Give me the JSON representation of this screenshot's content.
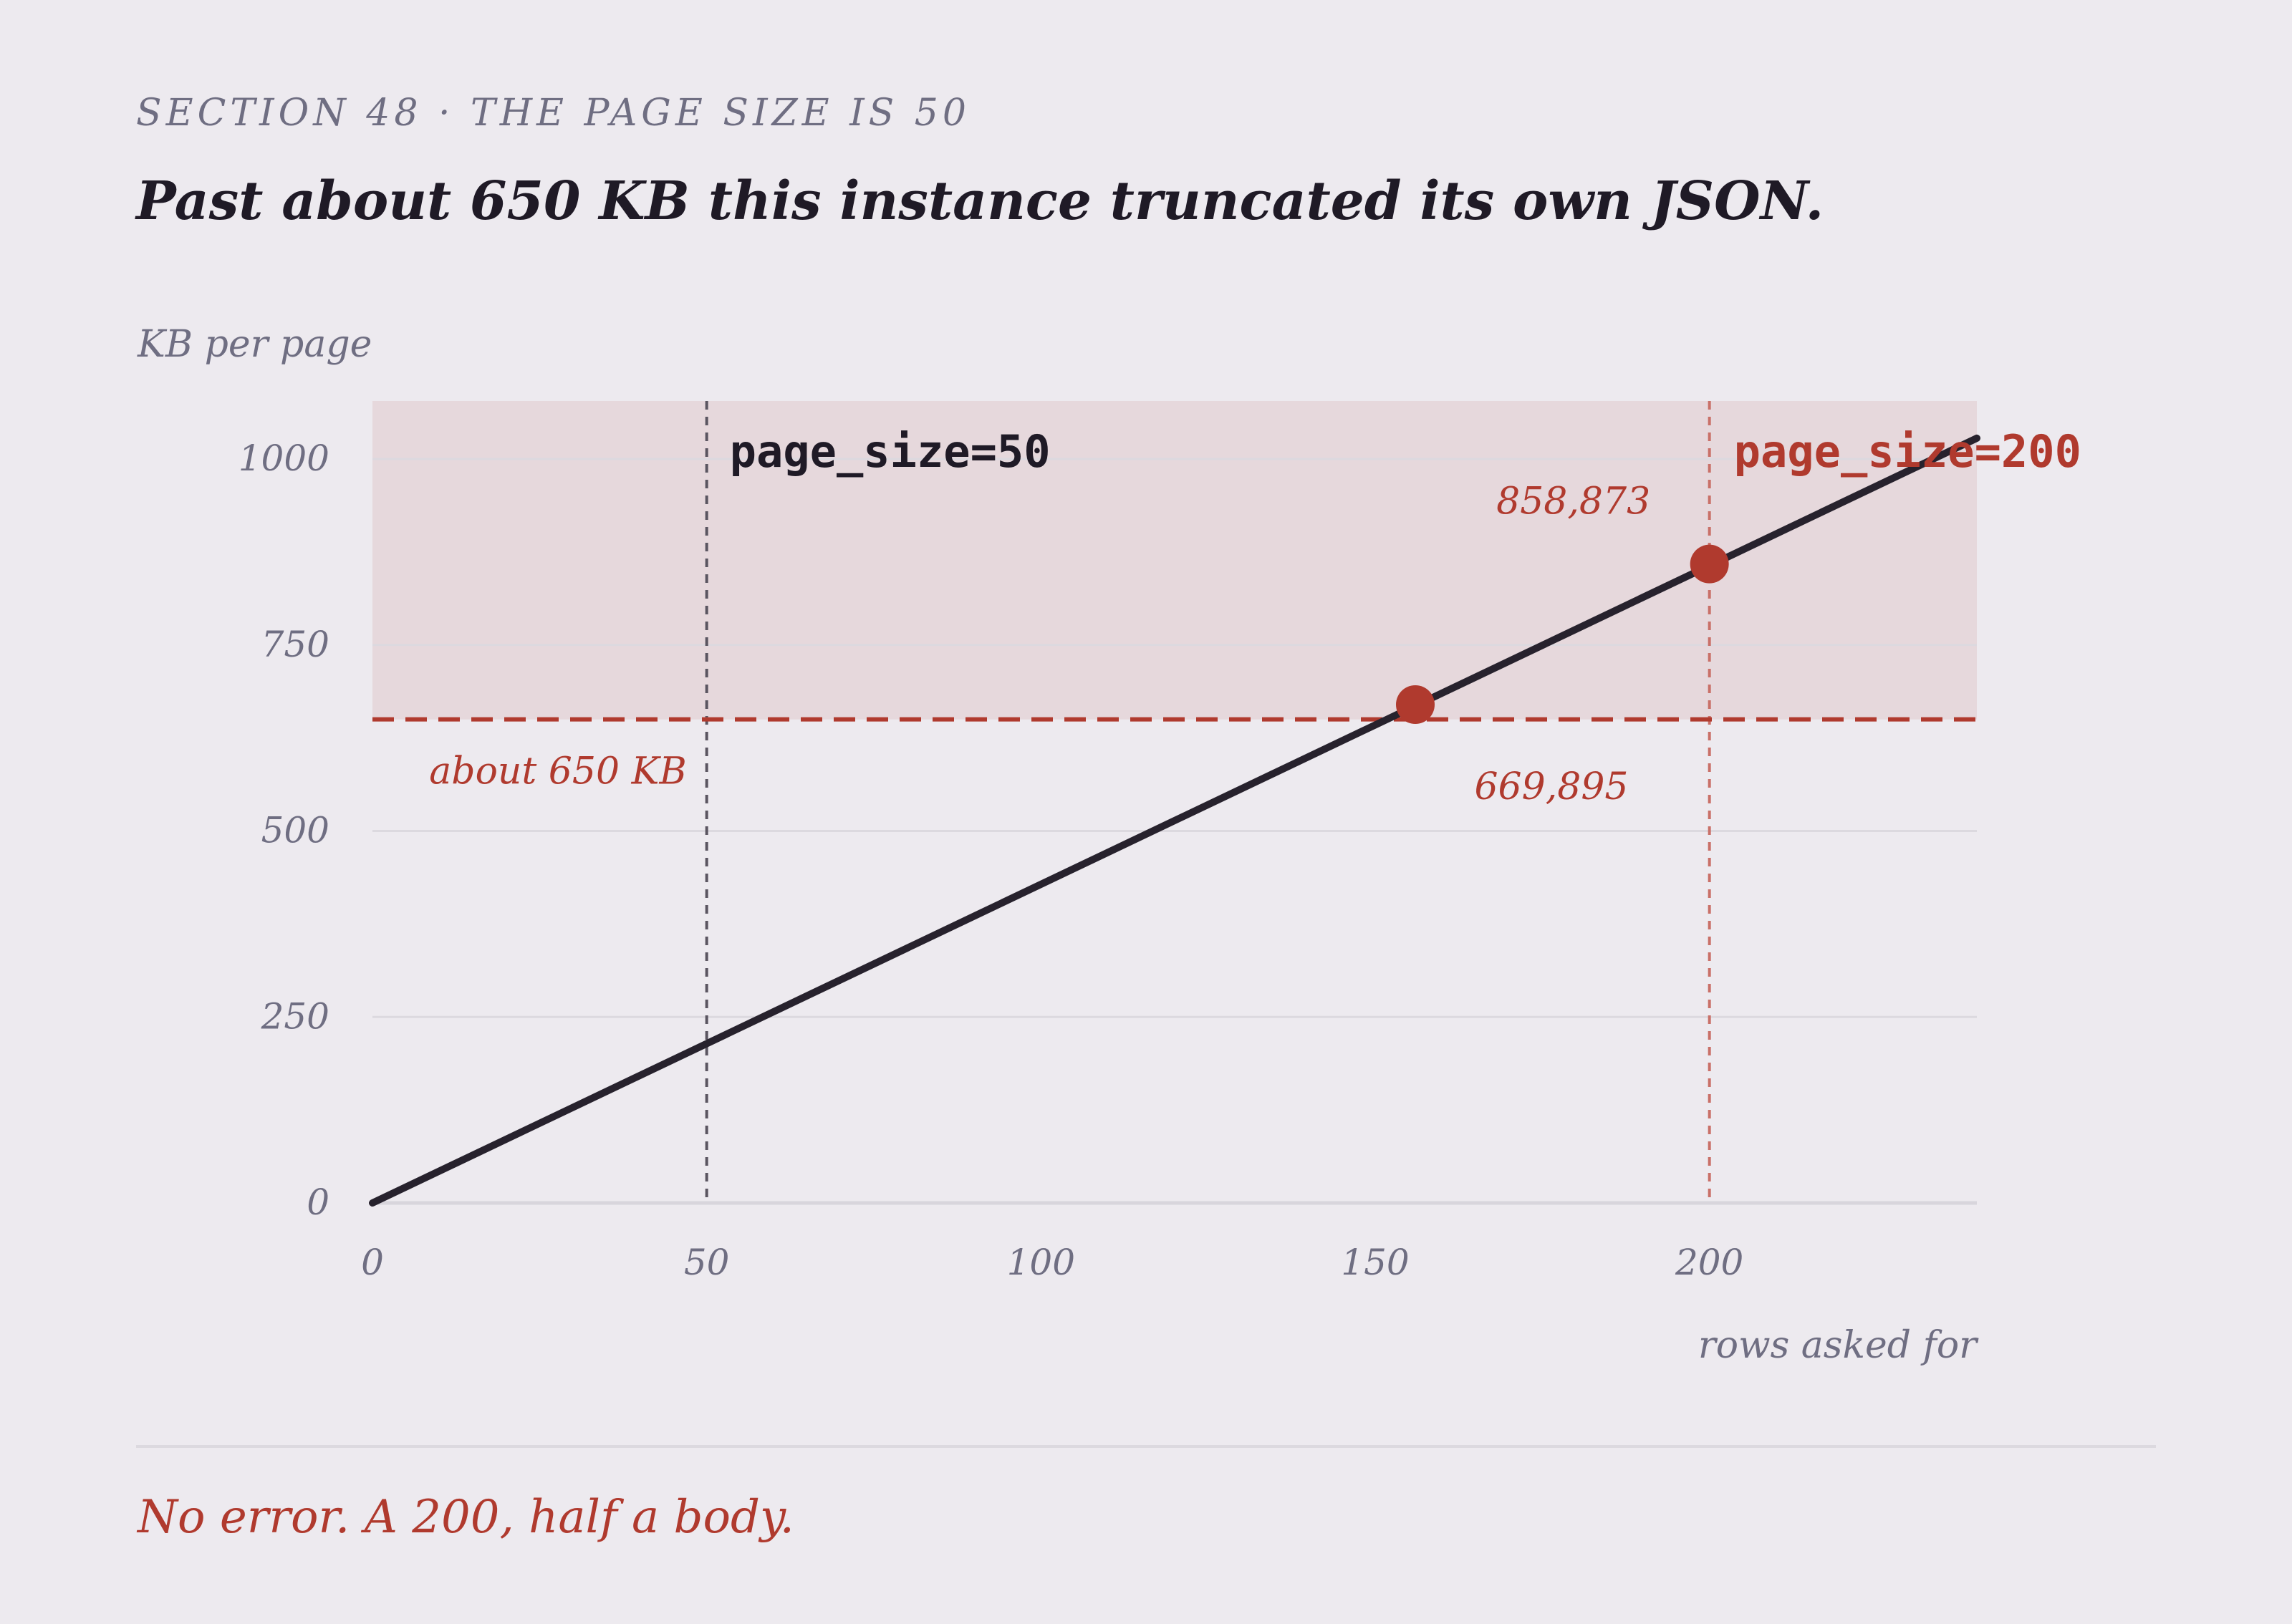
{
  "header": {
    "eyebrow": "SECTION 48 · THE PAGE SIZE IS 50",
    "headline": "Past about 650 KB this instance truncated its own JSON."
  },
  "footer": {
    "note": "No error. A 200, half a body."
  },
  "colors": {
    "background": "#edeaef",
    "line": "#27222d",
    "accent": "#b03a2e",
    "danger_zone": "#e6d8dc",
    "muted": "#6f6e82",
    "grid": "#dcd9df"
  },
  "chart_data": {
    "type": "line",
    "title": "",
    "xlabel": "rows asked for",
    "ylabel": "KB per page",
    "xlim": [
      0,
      240
    ],
    "ylim": [
      0,
      1000
    ],
    "x_ticks": [
      0,
      50,
      100,
      150,
      200
    ],
    "y_ticks": [
      0,
      250,
      500,
      750,
      1000
    ],
    "grid": "horizontal",
    "series": [
      {
        "x": [
          0,
          240
        ],
        "y": [
          0,
          1028
        ]
      }
    ],
    "threshold": {
      "y": 650,
      "label": "about 650 KB"
    },
    "markers": [
      {
        "x": 50,
        "label": "page_size=50"
      },
      {
        "x": 200,
        "label": "page_size=200"
      }
    ],
    "points": [
      {
        "x": 156,
        "y": 669.895,
        "label": "669,895"
      },
      {
        "x": 200,
        "y": 858.873,
        "label": "858,873"
      }
    ]
  }
}
